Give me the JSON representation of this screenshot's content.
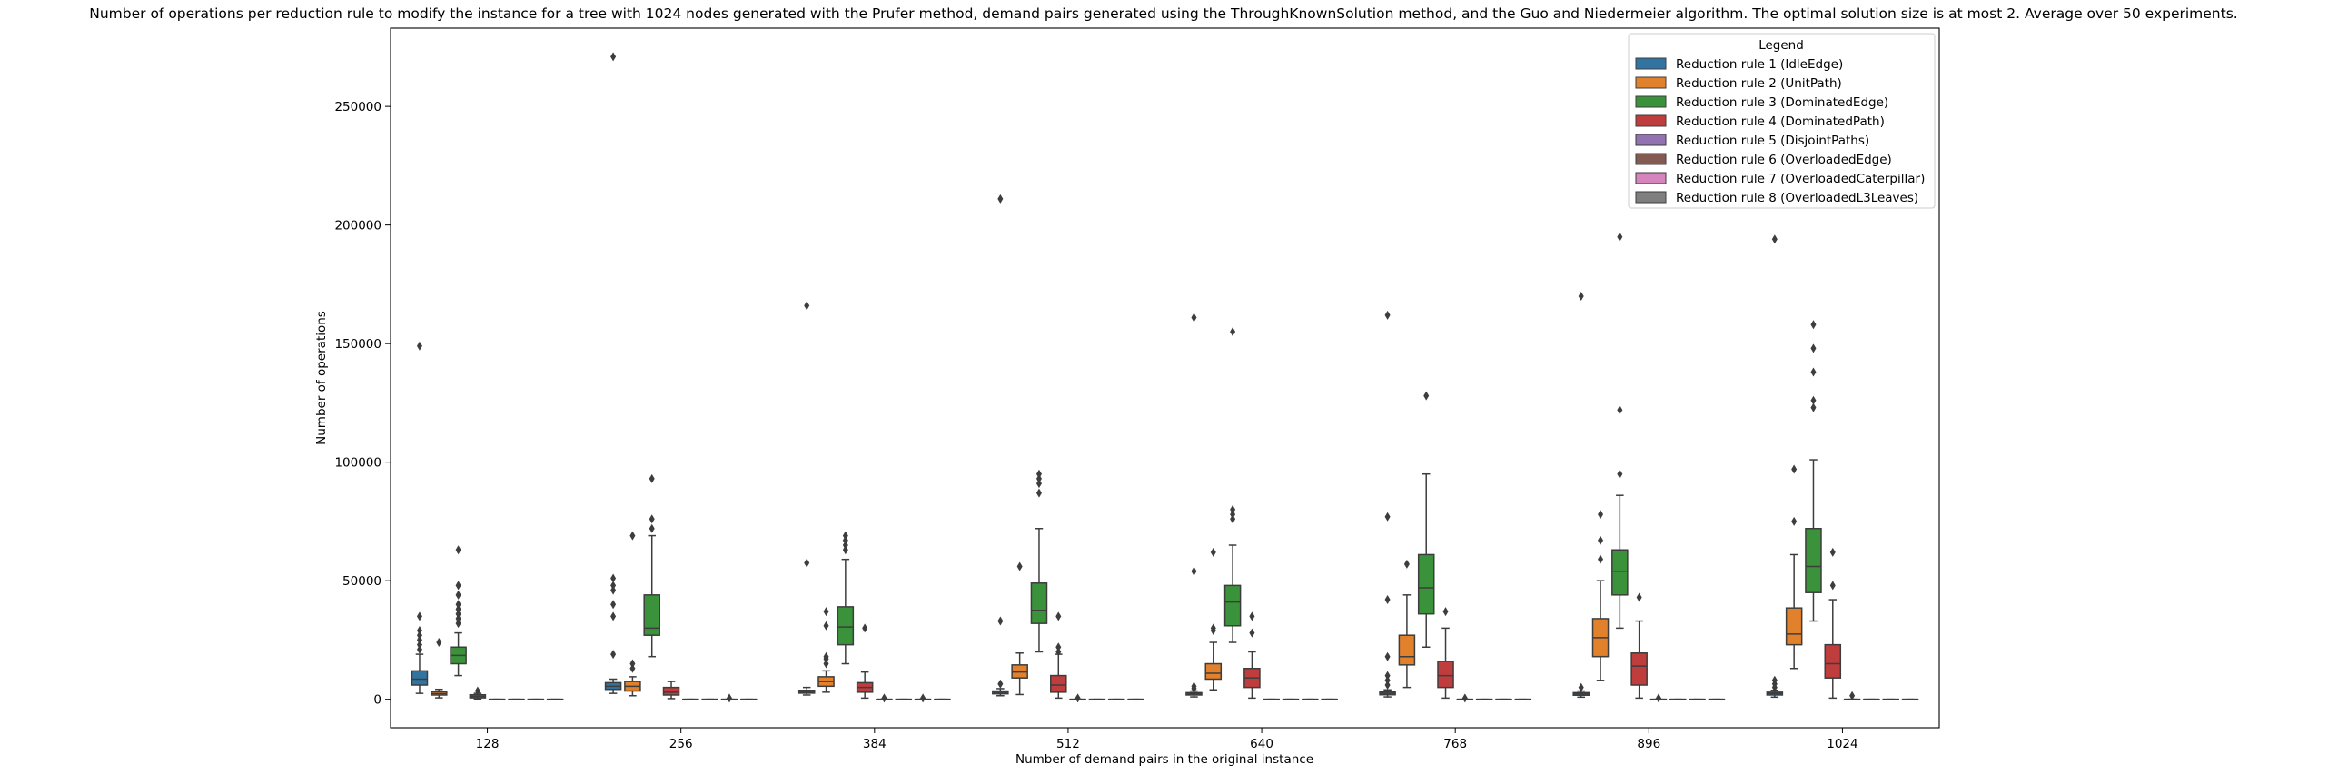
{
  "chart_data": {
    "type": "box",
    "title": "Number of operations per reduction rule to modify the instance for a tree with 1024 nodes generated with the Prufer method, demand pairs generated using the ThroughKnownSolution method, and the Guo and Niedermeier algorithm. The optimal solution size is at most 2. Average over 50 experiments.",
    "xlabel": "Number of demand pairs in the original instance",
    "ylabel": "Number of operations",
    "ylim": [
      -12000,
      283000
    ],
    "yticks": [
      0,
      50000,
      100000,
      150000,
      200000,
      250000
    ],
    "ytick_labels": [
      "0",
      "50000",
      "100000",
      "150000",
      "200000",
      "250000"
    ],
    "categories": [
      "128",
      "256",
      "384",
      "512",
      "640",
      "768",
      "896",
      "1024"
    ],
    "grid": false,
    "legend": {
      "title": "Legend",
      "placement": "top-right"
    },
    "series": [
      {
        "name": "Reduction rule 1 (IdleEdge)",
        "color": "#3274a1",
        "boxes": [
          {
            "q1": 6000,
            "med": 8500,
            "q3": 12000,
            "wlo": 2500,
            "whi": 19000,
            "fliers": [
              21000,
              23000,
              25000,
              27000,
              29000,
              35000,
              149000
            ]
          },
          {
            "q1": 4200,
            "med": 5500,
            "q3": 7000,
            "wlo": 2500,
            "whi": 8500,
            "fliers": [
              19000,
              35000,
              40000,
              46000,
              48000,
              51000,
              271000
            ]
          },
          {
            "q1": 2600,
            "med": 3100,
            "q3": 3800,
            "wlo": 1800,
            "whi": 5000,
            "fliers": [
              57500,
              166000
            ]
          },
          {
            "q1": 2300,
            "med": 2900,
            "q3": 3500,
            "wlo": 1500,
            "whi": 4500,
            "fliers": [
              6500,
              33000,
              211000
            ]
          },
          {
            "q1": 1800,
            "med": 2300,
            "q3": 2800,
            "wlo": 1000,
            "whi": 3500,
            "fliers": [
              4500,
              5500,
              54000,
              161000
            ]
          },
          {
            "q1": 1900,
            "med": 2500,
            "q3": 3100,
            "wlo": 1000,
            "whi": 4000,
            "fliers": [
              6000,
              8000,
              10000,
              18000,
              42000,
              77000,
              162000
            ]
          },
          {
            "q1": 1700,
            "med": 2300,
            "q3": 2800,
            "wlo": 900,
            "whi": 3500,
            "fliers": [
              5000,
              170000
            ]
          },
          {
            "q1": 1800,
            "med": 2400,
            "q3": 3000,
            "wlo": 900,
            "whi": 3800,
            "fliers": [
              5000,
              6500,
              8000,
              194000
            ]
          }
        ]
      },
      {
        "name": "Reduction rule 2 (UnitPath)",
        "color": "#e1812c",
        "boxes": [
          {
            "q1": 1800,
            "med": 2400,
            "q3": 3200,
            "wlo": 600,
            "whi": 4200,
            "fliers": [
              24000
            ]
          },
          {
            "q1": 3500,
            "med": 5500,
            "q3": 7500,
            "wlo": 1500,
            "whi": 9500,
            "fliers": [
              13000,
              15000,
              69000
            ]
          },
          {
            "q1": 5500,
            "med": 7500,
            "q3": 9500,
            "wlo": 3000,
            "whi": 12000,
            "fliers": [
              15000,
              17000,
              18000,
              31000,
              37000
            ]
          },
          {
            "q1": 9000,
            "med": 11500,
            "q3": 14500,
            "wlo": 2000,
            "whi": 19500,
            "fliers": [
              56000
            ]
          },
          {
            "q1": 8500,
            "med": 11000,
            "q3": 15000,
            "wlo": 4000,
            "whi": 24000,
            "fliers": [
              29000,
              30000,
              62000
            ]
          },
          {
            "q1": 14500,
            "med": 18000,
            "q3": 27000,
            "wlo": 5000,
            "whi": 44000,
            "fliers": [
              57000
            ]
          },
          {
            "q1": 18000,
            "med": 26000,
            "q3": 34000,
            "wlo": 8000,
            "whi": 50000,
            "fliers": [
              59000,
              67000,
              78000
            ]
          },
          {
            "q1": 23000,
            "med": 27500,
            "q3": 38500,
            "wlo": 13000,
            "whi": 61000,
            "fliers": [
              75000,
              97000
            ]
          }
        ]
      },
      {
        "name": "Reduction rule 3 (DominatedEdge)",
        "color": "#3a923a",
        "boxes": [
          {
            "q1": 15000,
            "med": 18500,
            "q3": 22000,
            "wlo": 10000,
            "whi": 28000,
            "fliers": [
              32000,
              34000,
              36000,
              38000,
              40000,
              44000,
              48000,
              63000
            ]
          },
          {
            "q1": 27000,
            "med": 30000,
            "q3": 44000,
            "wlo": 18000,
            "whi": 69000,
            "fliers": [
              72000,
              76000,
              93000
            ]
          },
          {
            "q1": 23000,
            "med": 30500,
            "q3": 39000,
            "wlo": 15000,
            "whi": 59000,
            "fliers": [
              63000,
              65000,
              67000,
              69000
            ]
          },
          {
            "q1": 32000,
            "med": 37500,
            "q3": 49000,
            "wlo": 20000,
            "whi": 72000,
            "fliers": [
              87000,
              91000,
              93000,
              95000
            ]
          },
          {
            "q1": 31000,
            "med": 41000,
            "q3": 48000,
            "wlo": 24000,
            "whi": 65000,
            "fliers": [
              76000,
              78000,
              80000,
              155000
            ]
          },
          {
            "q1": 36000,
            "med": 47000,
            "q3": 61000,
            "wlo": 22000,
            "whi": 95000,
            "fliers": [
              128000
            ]
          },
          {
            "q1": 44000,
            "med": 54000,
            "q3": 63000,
            "wlo": 30000,
            "whi": 86000,
            "fliers": [
              95000,
              122000,
              195000
            ]
          },
          {
            "q1": 45000,
            "med": 56000,
            "q3": 72000,
            "wlo": 33000,
            "whi": 101000,
            "fliers": [
              123000,
              126000,
              138000,
              148000,
              158000
            ]
          }
        ]
      },
      {
        "name": "Reduction rule 4 (DominatedPath)",
        "color": "#c03d3e",
        "boxes": [
          {
            "q1": 600,
            "med": 1200,
            "q3": 1900,
            "wlo": 100,
            "whi": 2500,
            "fliers": [
              3500
            ]
          },
          {
            "q1": 1800,
            "med": 3000,
            "q3": 5000,
            "wlo": 300,
            "whi": 7500,
            "fliers": []
          },
          {
            "q1": 3000,
            "med": 5000,
            "q3": 7000,
            "wlo": 500,
            "whi": 11500,
            "fliers": [
              30000
            ]
          },
          {
            "q1": 3000,
            "med": 6000,
            "q3": 10000,
            "wlo": 500,
            "whi": 19000,
            "fliers": [
              20000,
              22000,
              35000
            ]
          },
          {
            "q1": 5000,
            "med": 9000,
            "q3": 13000,
            "wlo": 500,
            "whi": 20000,
            "fliers": [
              28000,
              35000
            ]
          },
          {
            "q1": 5000,
            "med": 10000,
            "q3": 16000,
            "wlo": 500,
            "whi": 30000,
            "fliers": [
              37000
            ]
          },
          {
            "q1": 6000,
            "med": 14000,
            "q3": 19500,
            "wlo": 500,
            "whi": 33000,
            "fliers": [
              43000
            ]
          },
          {
            "q1": 9000,
            "med": 15000,
            "q3": 23000,
            "wlo": 500,
            "whi": 42000,
            "fliers": [
              48000,
              62000
            ]
          }
        ]
      },
      {
        "name": "Reduction rule 5 (DisjointPaths)",
        "color": "#9372b2",
        "boxes": [
          {
            "q1": 0,
            "med": 0,
            "q3": 0,
            "wlo": 0,
            "whi": 0,
            "fliers": []
          },
          {
            "q1": 0,
            "med": 0,
            "q3": 0,
            "wlo": 0,
            "whi": 0,
            "fliers": []
          },
          {
            "q1": 0,
            "med": 0,
            "q3": 0,
            "wlo": 0,
            "whi": 0,
            "fliers": [
              500
            ]
          },
          {
            "q1": 0,
            "med": 0,
            "q3": 0,
            "wlo": 0,
            "whi": 0,
            "fliers": [
              500
            ]
          },
          {
            "q1": 0,
            "med": 0,
            "q3": 0,
            "wlo": 0,
            "whi": 0,
            "fliers": []
          },
          {
            "q1": 0,
            "med": 0,
            "q3": 0,
            "wlo": 0,
            "whi": 0,
            "fliers": [
              500
            ]
          },
          {
            "q1": 0,
            "med": 0,
            "q3": 0,
            "wlo": 0,
            "whi": 0,
            "fliers": [
              500
            ]
          },
          {
            "q1": 0,
            "med": 0,
            "q3": 0,
            "wlo": 0,
            "whi": 0,
            "fliers": [
              1500
            ]
          }
        ]
      },
      {
        "name": "Reduction rule 6 (OverloadedEdge)",
        "color": "#845b53",
        "boxes": [
          {
            "q1": 0,
            "med": 0,
            "q3": 0,
            "wlo": 0,
            "whi": 0,
            "fliers": []
          },
          {
            "q1": 0,
            "med": 0,
            "q3": 0,
            "wlo": 0,
            "whi": 0,
            "fliers": []
          },
          {
            "q1": 0,
            "med": 0,
            "q3": 0,
            "wlo": 0,
            "whi": 0,
            "fliers": []
          },
          {
            "q1": 0,
            "med": 0,
            "q3": 0,
            "wlo": 0,
            "whi": 0,
            "fliers": []
          },
          {
            "q1": 0,
            "med": 0,
            "q3": 0,
            "wlo": 0,
            "whi": 0,
            "fliers": []
          },
          {
            "q1": 0,
            "med": 0,
            "q3": 0,
            "wlo": 0,
            "whi": 0,
            "fliers": []
          },
          {
            "q1": 0,
            "med": 0,
            "q3": 0,
            "wlo": 0,
            "whi": 0,
            "fliers": []
          },
          {
            "q1": 0,
            "med": 0,
            "q3": 0,
            "wlo": 0,
            "whi": 0,
            "fliers": []
          }
        ]
      },
      {
        "name": "Reduction rule 7 (OverloadedCaterpillar)",
        "color": "#d684bd",
        "boxes": [
          {
            "q1": 0,
            "med": 0,
            "q3": 0,
            "wlo": 0,
            "whi": 0,
            "fliers": []
          },
          {
            "q1": 0,
            "med": 0,
            "q3": 0,
            "wlo": 0,
            "whi": 0,
            "fliers": [
              500
            ]
          },
          {
            "q1": 0,
            "med": 0,
            "q3": 0,
            "wlo": 0,
            "whi": 0,
            "fliers": [
              500
            ]
          },
          {
            "q1": 0,
            "med": 0,
            "q3": 0,
            "wlo": 0,
            "whi": 0,
            "fliers": []
          },
          {
            "q1": 0,
            "med": 0,
            "q3": 0,
            "wlo": 0,
            "whi": 0,
            "fliers": []
          },
          {
            "q1": 0,
            "med": 0,
            "q3": 0,
            "wlo": 0,
            "whi": 0,
            "fliers": []
          },
          {
            "q1": 0,
            "med": 0,
            "q3": 0,
            "wlo": 0,
            "whi": 0,
            "fliers": []
          },
          {
            "q1": 0,
            "med": 0,
            "q3": 0,
            "wlo": 0,
            "whi": 0,
            "fliers": []
          }
        ]
      },
      {
        "name": "Reduction rule 8 (OverloadedL3Leaves)",
        "color": "#7f7f7f",
        "boxes": [
          {
            "q1": 0,
            "med": 0,
            "q3": 0,
            "wlo": 0,
            "whi": 0,
            "fliers": []
          },
          {
            "q1": 0,
            "med": 0,
            "q3": 0,
            "wlo": 0,
            "whi": 0,
            "fliers": []
          },
          {
            "q1": 0,
            "med": 0,
            "q3": 0,
            "wlo": 0,
            "whi": 0,
            "fliers": []
          },
          {
            "q1": 0,
            "med": 0,
            "q3": 0,
            "wlo": 0,
            "whi": 0,
            "fliers": []
          },
          {
            "q1": 0,
            "med": 0,
            "q3": 0,
            "wlo": 0,
            "whi": 0,
            "fliers": []
          },
          {
            "q1": 0,
            "med": 0,
            "q3": 0,
            "wlo": 0,
            "whi": 0,
            "fliers": []
          },
          {
            "q1": 0,
            "med": 0,
            "q3": 0,
            "wlo": 0,
            "whi": 0,
            "fliers": []
          },
          {
            "q1": 0,
            "med": 0,
            "q3": 0,
            "wlo": 0,
            "whi": 0,
            "fliers": []
          }
        ]
      }
    ]
  }
}
